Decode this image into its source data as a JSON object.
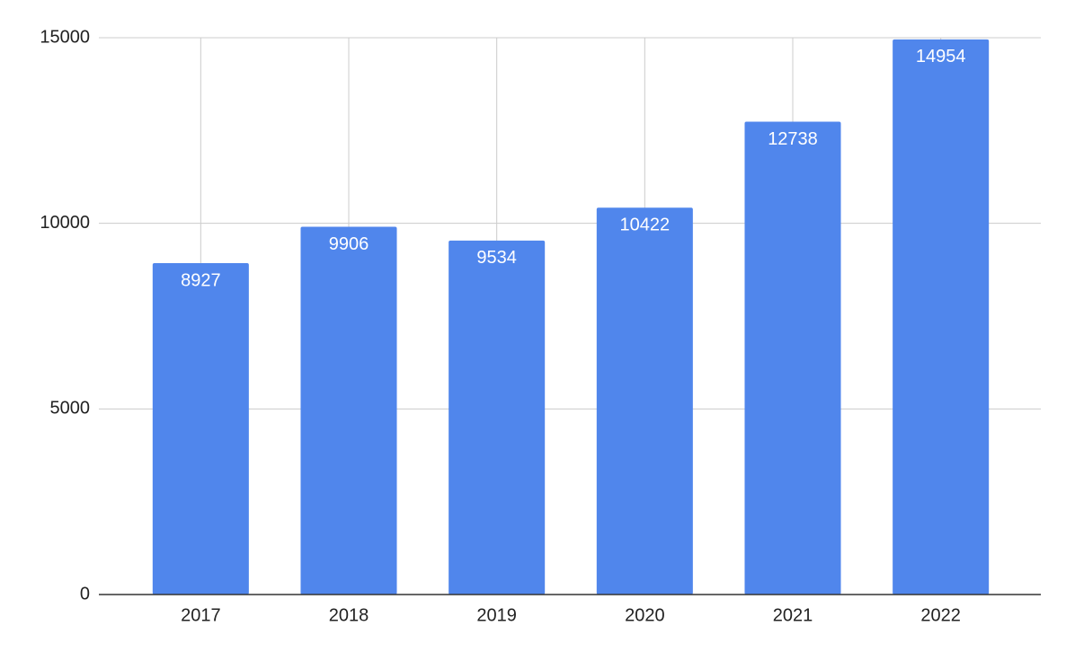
{
  "chart_data": {
    "type": "bar",
    "categories": [
      "2017",
      "2018",
      "2019",
      "2020",
      "2021",
      "2022"
    ],
    "values": [
      8927,
      9906,
      9534,
      10422,
      12738,
      14954
    ],
    "color": "#5086ec",
    "ylim": [
      0,
      15000
    ],
    "yticks": [
      0,
      5000,
      10000,
      15000
    ],
    "grid": true
  }
}
